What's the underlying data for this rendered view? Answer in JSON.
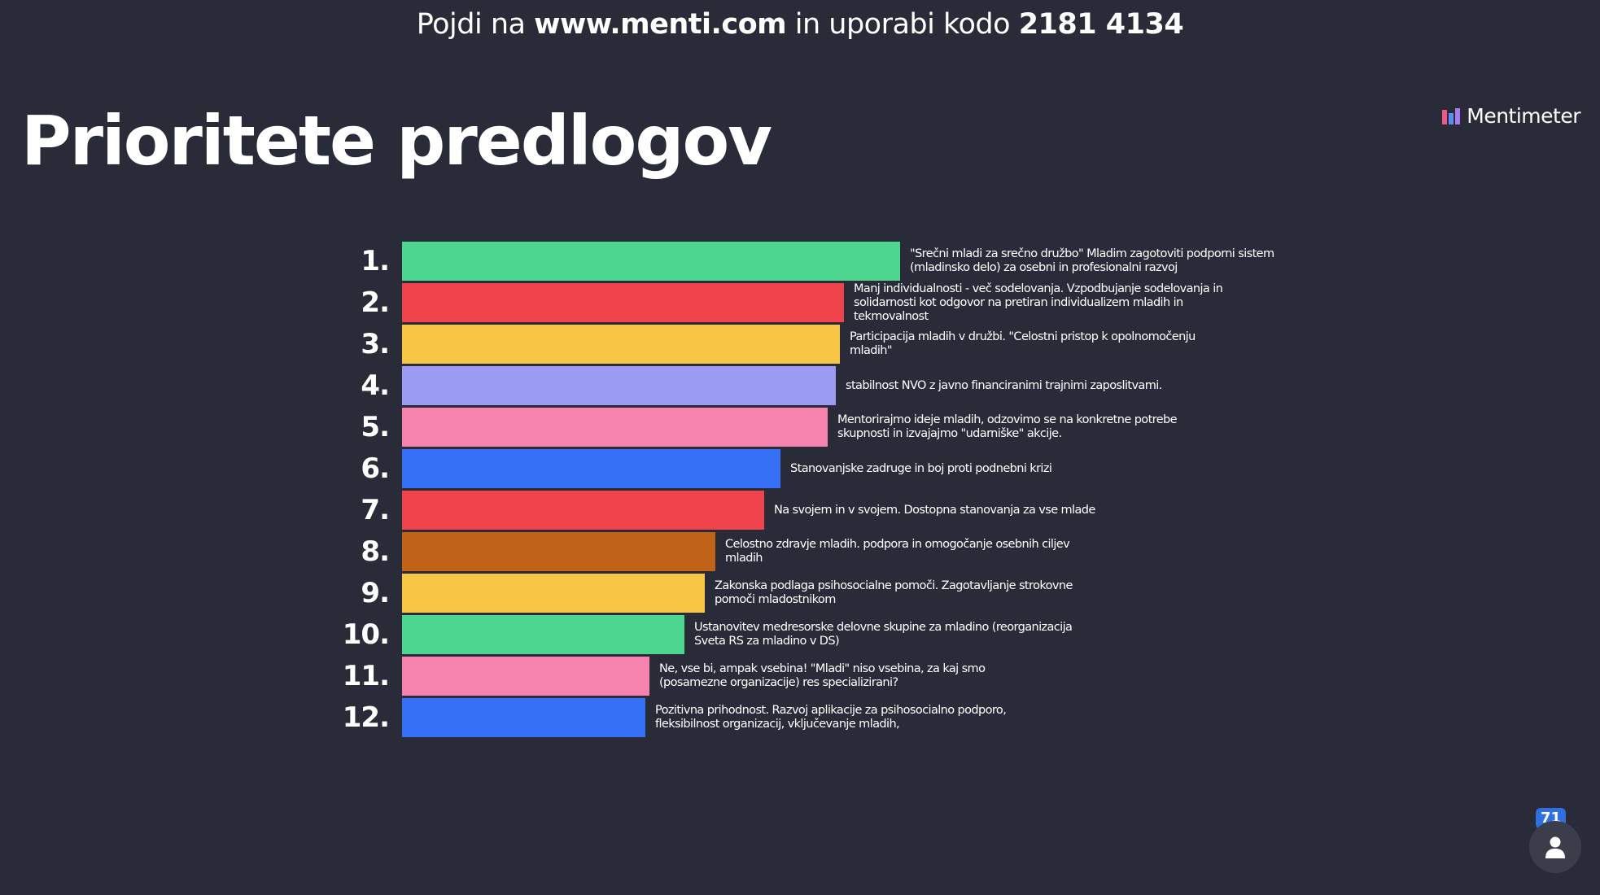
{
  "header": {
    "prefix": "Pojdi na",
    "site": "www.menti.com",
    "middle": "in uporabi kodo",
    "code": "2181 4134"
  },
  "title": "Prioritete predlogov",
  "brand": {
    "name": "Mentimeter",
    "icon": "mentimeter-logo-icon"
  },
  "participants": {
    "count": "71",
    "icon": "person-icon"
  },
  "ranking": {
    "max_score": 100,
    "items": [
      {
        "rank": "1.",
        "score": 100,
        "color": "#4cd68f",
        "text": "\"Srečni mladi za srečno družbo\" Mladim zagotoviti podporni sistem (mladinsko delo) za osebni in profesionalni razvoj"
      },
      {
        "rank": "2.",
        "score": 88.7,
        "color": "#f0434b",
        "text": "Manj individualnosti - več sodelovanja. Vzpodbujanje sodelovanja in solidarnosti kot odgovor na pretiran individualizem mladih in tekmovalnost"
      },
      {
        "rank": "3.",
        "score": 87.9,
        "color": "#f8c544",
        "text": "Participacija mladih v družbi. \"Celostni pristop k opolnomočenju mladih\""
      },
      {
        "rank": "4.",
        "score": 87.1,
        "color": "#9b9bf2",
        "text": "stabilnost NVO z javno financiranimi trajnimi zaposlitvami."
      },
      {
        "rank": "5.",
        "score": 85.5,
        "color": "#f683ad",
        "text": "Mentorirajmo ideje mladih, odzovimo se na konkretne potrebe skupnosti in izvajajmo \"udarniške\" akcije."
      },
      {
        "rank": "6.",
        "score": 75.9,
        "color": "#3670f6",
        "text": "Stanovanjske zadruge in boj proti podnebni krizi"
      },
      {
        "rank": "7.",
        "score": 72.7,
        "color": "#f0434b",
        "text": "Na svojem in v svojem. Dostopna stanovanja za vse mlade"
      },
      {
        "rank": "8.",
        "score": 62.9,
        "color": "#c06218",
        "text": "Celostno zdravje mladih. podpora in omogočanje osebnih ciljev mladih"
      },
      {
        "rank": "9.",
        "score": 60.8,
        "color": "#f8c544",
        "text": "Zakonska podlaga psihosocialne pomoči. Zagotavljanje strokovne pomoči mladostnikom"
      },
      {
        "rank": "10.",
        "score": 56.7,
        "color": "#4cd68f",
        "text": "Ustanovitev medresorske delovne skupine za mladino (reorganizacija Sveta RS za mladino v DS)"
      },
      {
        "rank": "11.",
        "score": 49.6,
        "color": "#f683ad",
        "text": "Ne, vse bi, ampak vsebina! \"Mladi\" niso vsebina, za kaj smo (posamezne organizacije) res specializirani?"
      },
      {
        "rank": "12.",
        "score": 48.9,
        "color": "#3670f6",
        "text": "Pozitivna prihodnost. Razvoj aplikacije za psihosocialno podporo, fleksibilnost organizacij, vključevanje mladih,"
      }
    ]
  }
}
